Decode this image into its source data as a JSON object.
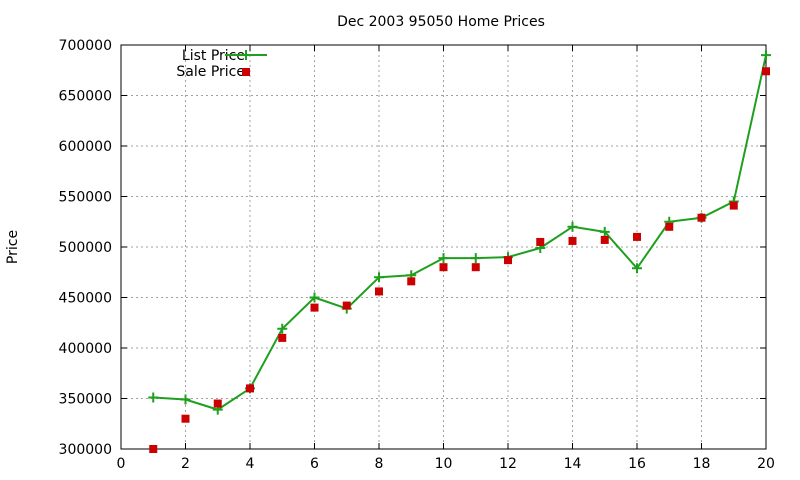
{
  "chart_data": {
    "type": "line",
    "title": "Dec 2003 95050 Home Prices",
    "xlabel": "",
    "ylabel": "Price",
    "xlim": [
      0,
      20
    ],
    "ylim": [
      300000,
      700000
    ],
    "x_ticks": [
      "0",
      "2",
      "4",
      "6",
      "8",
      "10",
      "12",
      "14",
      "16",
      "18",
      "20"
    ],
    "y_ticks": [
      "300000",
      "350000",
      "400000",
      "450000",
      "500000",
      "550000",
      "600000",
      "650000",
      "700000"
    ],
    "grid": true,
    "legend_position": "top-left",
    "series": [
      {
        "name": "List Price",
        "style": "line-with-plus-markers",
        "color": "#1ea01e",
        "x": [
          1,
          2,
          3,
          4,
          5,
          6,
          7,
          8,
          9,
          10,
          11,
          12,
          13,
          14,
          15,
          16,
          17,
          18,
          19,
          20
        ],
        "values": [
          351000,
          349000,
          339000,
          360000,
          419000,
          450000,
          439000,
          470000,
          472000,
          489000,
          489000,
          490000,
          499000,
          520000,
          515000,
          479000,
          525000,
          529000,
          545000,
          690000
        ]
      },
      {
        "name": "Sale Price",
        "style": "square-markers",
        "color": "#cc0000",
        "x": [
          1,
          2,
          3,
          4,
          5,
          6,
          7,
          8,
          9,
          10,
          11,
          12,
          13,
          14,
          15,
          16,
          17,
          18,
          19,
          20
        ],
        "values": [
          300000,
          330000,
          345000,
          360000,
          410000,
          440000,
          442000,
          456000,
          466000,
          480000,
          480000,
          487000,
          505000,
          506000,
          507000,
          510000,
          520000,
          529000,
          541000,
          674000
        ]
      }
    ]
  }
}
